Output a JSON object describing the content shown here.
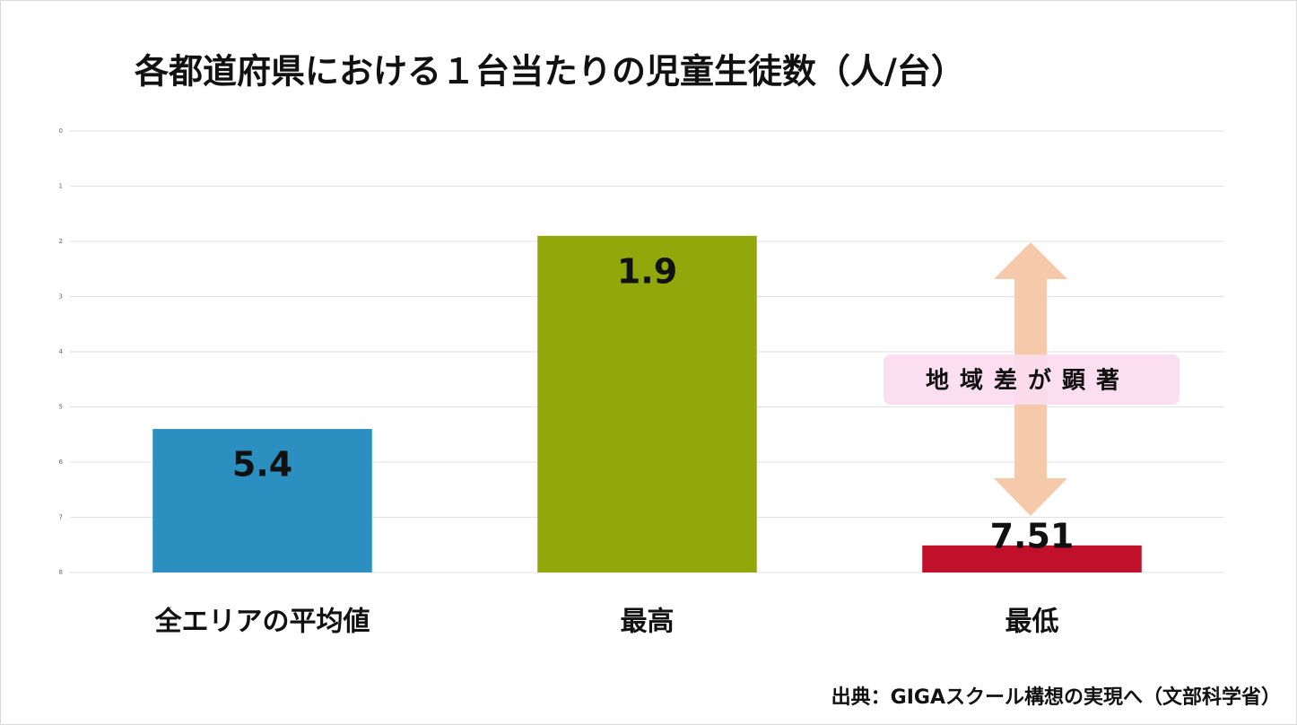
{
  "chart_data": {
    "type": "bar",
    "title": "各都道府県における１台当たりの児童生徒数（人/台）",
    "categories": [
      "全エリアの平均値",
      "最高",
      "最低"
    ],
    "values": [
      5.4,
      1.9,
      7.51
    ],
    "colors": [
      "#2b8fbf",
      "#92a80a",
      "#c0102a"
    ],
    "ylim": [
      8,
      0
    ],
    "yticks": [
      0,
      1,
      2,
      3,
      4,
      5,
      6,
      7,
      8
    ],
    "grid": true,
    "annotation": "地域差が顕著",
    "source": "出典：GIGAスクール構想の実現へ（文部科学省）"
  }
}
